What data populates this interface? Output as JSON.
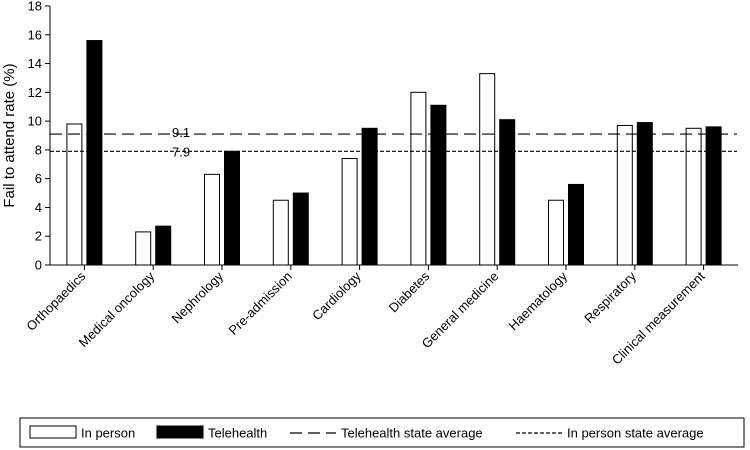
{
  "chart_data": {
    "type": "bar",
    "ylabel": "Fail to attend rate (%)",
    "ylim": [
      0,
      18
    ],
    "yticks": [
      0,
      2,
      4,
      6,
      8,
      10,
      12,
      14,
      16,
      18
    ],
    "categories": [
      "Orthopaedics",
      "Medical oncology",
      "Nephrology",
      "Pre-admission",
      "Cardiology",
      "Diabetes",
      "General medicine",
      "Haematology",
      "Respiratory",
      "Clinical measurement"
    ],
    "series": [
      {
        "name": "In person",
        "color": "#ffffff",
        "values": [
          9.8,
          2.3,
          6.3,
          4.5,
          7.4,
          12.0,
          13.3,
          4.5,
          9.7,
          9.5
        ]
      },
      {
        "name": "Telehealth",
        "color": "#000000",
        "values": [
          15.6,
          2.7,
          7.9,
          5.0,
          9.5,
          11.1,
          10.1,
          5.6,
          9.9,
          9.6
        ]
      }
    ],
    "reference_lines": [
      {
        "name": "Telehealth state average",
        "value": 9.1,
        "label": "9.1",
        "style": "long-dash"
      },
      {
        "name": "In person state average",
        "value": 7.9,
        "label": "7.9",
        "style": "short-dash"
      }
    ],
    "legend_position": "bottom",
    "grid": false
  }
}
